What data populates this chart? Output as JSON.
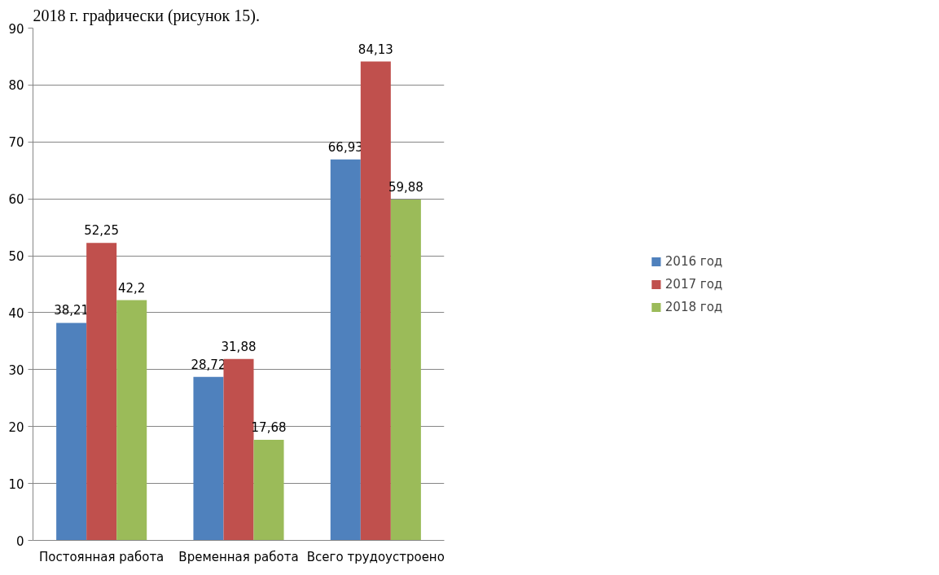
{
  "chart_data": {
    "type": "bar",
    "categories": [
      "Постоянная работа",
      "Временная работа",
      "Всего трудоустроено"
    ],
    "series": [
      {
        "name": "2016 год",
        "color": "#4f81bd",
        "values": [
          38.21,
          28.72,
          66.93
        ],
        "value_labels": [
          "38,21",
          "28,72",
          "66,93"
        ]
      },
      {
        "name": "2017 год",
        "color": "#c0504d",
        "values": [
          52.25,
          31.88,
          84.13
        ],
        "value_labels": [
          "52,25",
          "31,88",
          "84,13"
        ]
      },
      {
        "name": "2018 год",
        "color": "#9bbb59",
        "values": [
          42.2,
          17.68,
          59.88
        ],
        "value_labels": [
          "42,2",
          "17,68",
          "59,88"
        ]
      }
    ],
    "ylim": [
      0,
      90
    ],
    "yticks": [
      0,
      10,
      20,
      30,
      40,
      50,
      60,
      70,
      80,
      90
    ],
    "grid": "y",
    "legend": "right",
    "annotations": [
      "2018 г. графически (рисунок 15)."
    ]
  }
}
